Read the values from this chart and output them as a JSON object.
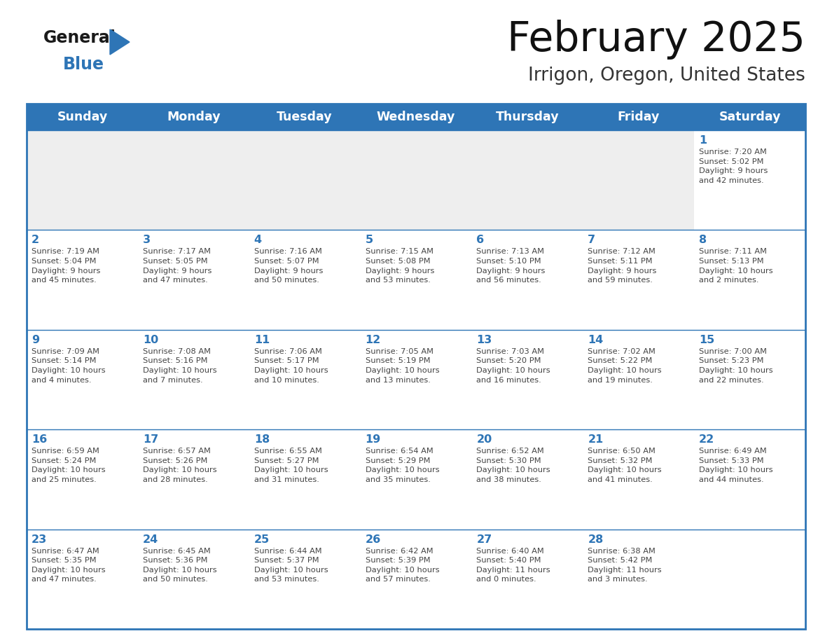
{
  "title": "February 2025",
  "subtitle": "Irrigon, Oregon, United States",
  "header_color": "#2e75b6",
  "header_text_color": "#ffffff",
  "cell_bg_white": "#ffffff",
  "cell_bg_gray": "#eeeeee",
  "day_number_color": "#2e75b6",
  "text_color": "#444444",
  "border_color": "#2e75b6",
  "line_color": "#2e75b6",
  "logo_black": "#1a1a1a",
  "logo_blue": "#2e75b6",
  "days_of_week": [
    "Sunday",
    "Monday",
    "Tuesday",
    "Wednesday",
    "Thursday",
    "Friday",
    "Saturday"
  ],
  "weeks": [
    [
      {
        "day": null,
        "info": null
      },
      {
        "day": null,
        "info": null
      },
      {
        "day": null,
        "info": null
      },
      {
        "day": null,
        "info": null
      },
      {
        "day": null,
        "info": null
      },
      {
        "day": null,
        "info": null
      },
      {
        "day": 1,
        "info": "Sunrise: 7:20 AM\nSunset: 5:02 PM\nDaylight: 9 hours\nand 42 minutes."
      }
    ],
    [
      {
        "day": 2,
        "info": "Sunrise: 7:19 AM\nSunset: 5:04 PM\nDaylight: 9 hours\nand 45 minutes."
      },
      {
        "day": 3,
        "info": "Sunrise: 7:17 AM\nSunset: 5:05 PM\nDaylight: 9 hours\nand 47 minutes."
      },
      {
        "day": 4,
        "info": "Sunrise: 7:16 AM\nSunset: 5:07 PM\nDaylight: 9 hours\nand 50 minutes."
      },
      {
        "day": 5,
        "info": "Sunrise: 7:15 AM\nSunset: 5:08 PM\nDaylight: 9 hours\nand 53 minutes."
      },
      {
        "day": 6,
        "info": "Sunrise: 7:13 AM\nSunset: 5:10 PM\nDaylight: 9 hours\nand 56 minutes."
      },
      {
        "day": 7,
        "info": "Sunrise: 7:12 AM\nSunset: 5:11 PM\nDaylight: 9 hours\nand 59 minutes."
      },
      {
        "day": 8,
        "info": "Sunrise: 7:11 AM\nSunset: 5:13 PM\nDaylight: 10 hours\nand 2 minutes."
      }
    ],
    [
      {
        "day": 9,
        "info": "Sunrise: 7:09 AM\nSunset: 5:14 PM\nDaylight: 10 hours\nand 4 minutes."
      },
      {
        "day": 10,
        "info": "Sunrise: 7:08 AM\nSunset: 5:16 PM\nDaylight: 10 hours\nand 7 minutes."
      },
      {
        "day": 11,
        "info": "Sunrise: 7:06 AM\nSunset: 5:17 PM\nDaylight: 10 hours\nand 10 minutes."
      },
      {
        "day": 12,
        "info": "Sunrise: 7:05 AM\nSunset: 5:19 PM\nDaylight: 10 hours\nand 13 minutes."
      },
      {
        "day": 13,
        "info": "Sunrise: 7:03 AM\nSunset: 5:20 PM\nDaylight: 10 hours\nand 16 minutes."
      },
      {
        "day": 14,
        "info": "Sunrise: 7:02 AM\nSunset: 5:22 PM\nDaylight: 10 hours\nand 19 minutes."
      },
      {
        "day": 15,
        "info": "Sunrise: 7:00 AM\nSunset: 5:23 PM\nDaylight: 10 hours\nand 22 minutes."
      }
    ],
    [
      {
        "day": 16,
        "info": "Sunrise: 6:59 AM\nSunset: 5:24 PM\nDaylight: 10 hours\nand 25 minutes."
      },
      {
        "day": 17,
        "info": "Sunrise: 6:57 AM\nSunset: 5:26 PM\nDaylight: 10 hours\nand 28 minutes."
      },
      {
        "day": 18,
        "info": "Sunrise: 6:55 AM\nSunset: 5:27 PM\nDaylight: 10 hours\nand 31 minutes."
      },
      {
        "day": 19,
        "info": "Sunrise: 6:54 AM\nSunset: 5:29 PM\nDaylight: 10 hours\nand 35 minutes."
      },
      {
        "day": 20,
        "info": "Sunrise: 6:52 AM\nSunset: 5:30 PM\nDaylight: 10 hours\nand 38 minutes."
      },
      {
        "day": 21,
        "info": "Sunrise: 6:50 AM\nSunset: 5:32 PM\nDaylight: 10 hours\nand 41 minutes."
      },
      {
        "day": 22,
        "info": "Sunrise: 6:49 AM\nSunset: 5:33 PM\nDaylight: 10 hours\nand 44 minutes."
      }
    ],
    [
      {
        "day": 23,
        "info": "Sunrise: 6:47 AM\nSunset: 5:35 PM\nDaylight: 10 hours\nand 47 minutes."
      },
      {
        "day": 24,
        "info": "Sunrise: 6:45 AM\nSunset: 5:36 PM\nDaylight: 10 hours\nand 50 minutes."
      },
      {
        "day": 25,
        "info": "Sunrise: 6:44 AM\nSunset: 5:37 PM\nDaylight: 10 hours\nand 53 minutes."
      },
      {
        "day": 26,
        "info": "Sunrise: 6:42 AM\nSunset: 5:39 PM\nDaylight: 10 hours\nand 57 minutes."
      },
      {
        "day": 27,
        "info": "Sunrise: 6:40 AM\nSunset: 5:40 PM\nDaylight: 11 hours\nand 0 minutes."
      },
      {
        "day": 28,
        "info": "Sunrise: 6:38 AM\nSunset: 5:42 PM\nDaylight: 11 hours\nand 3 minutes."
      },
      {
        "day": null,
        "info": null
      }
    ]
  ]
}
